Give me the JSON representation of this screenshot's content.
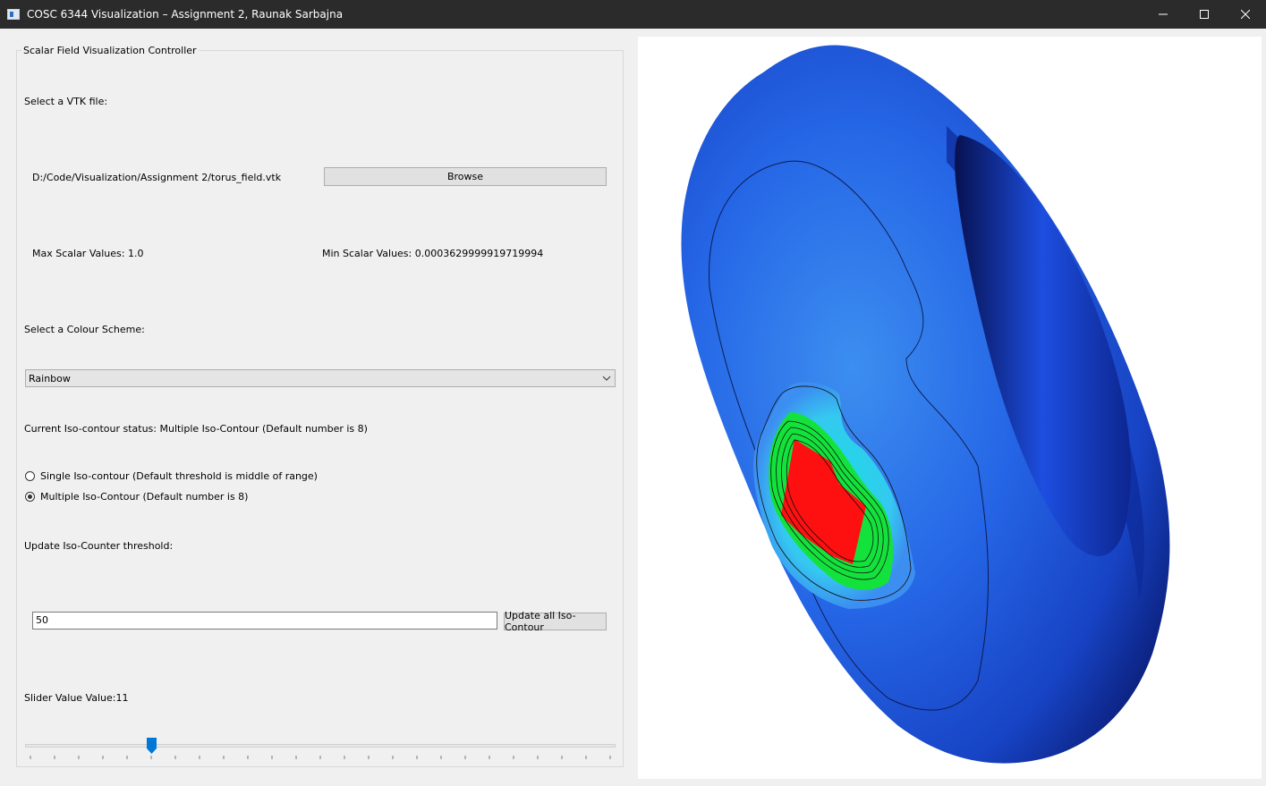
{
  "window": {
    "title": "COSC 6344 Visualization – Assignment 2, Raunak Sarbajna",
    "controls": [
      "minimize-icon",
      "maximize-icon",
      "close-icon"
    ]
  },
  "controller": {
    "group_title": "Scalar Field Visualization Controller",
    "select_file_label": "Select a VTK file:",
    "file_path": "D:/Code/Visualization/Assignment 2/torus_field.vtk",
    "browse_label": "Browse",
    "max_scalar": "Max Scalar Values: 1.0",
    "min_scalar": "Min Scalar Values: 0.0003629999919719994",
    "colour_scheme_label": "Select a Colour Scheme:",
    "colour_scheme_value": "Rainbow",
    "iso_status": "Current Iso-contour status: Multiple Iso-Contour (Default number is 8)",
    "radio_single": "Single Iso-contour (Default threshold is middle of range)",
    "radio_multiple": "Multiple Iso-Contour (Default number is 8)",
    "selected_mode": "multiple",
    "threshold_label": "Update Iso-Counter threshold:",
    "threshold_value": "50",
    "update_label": "Update all Iso-Contour",
    "slider_label": "Slider Value Value:11",
    "slider": {
      "value": 11,
      "min": 6,
      "max": 30,
      "ticks": 25
    }
  },
  "render": {
    "colors": {
      "dark_blue": "#0b1f7a",
      "blue": "#1f4fd6",
      "light_blue": "#3c8ef0",
      "cyan": "#17e0e0",
      "green": "#14e23c",
      "red": "#ff1010"
    }
  }
}
